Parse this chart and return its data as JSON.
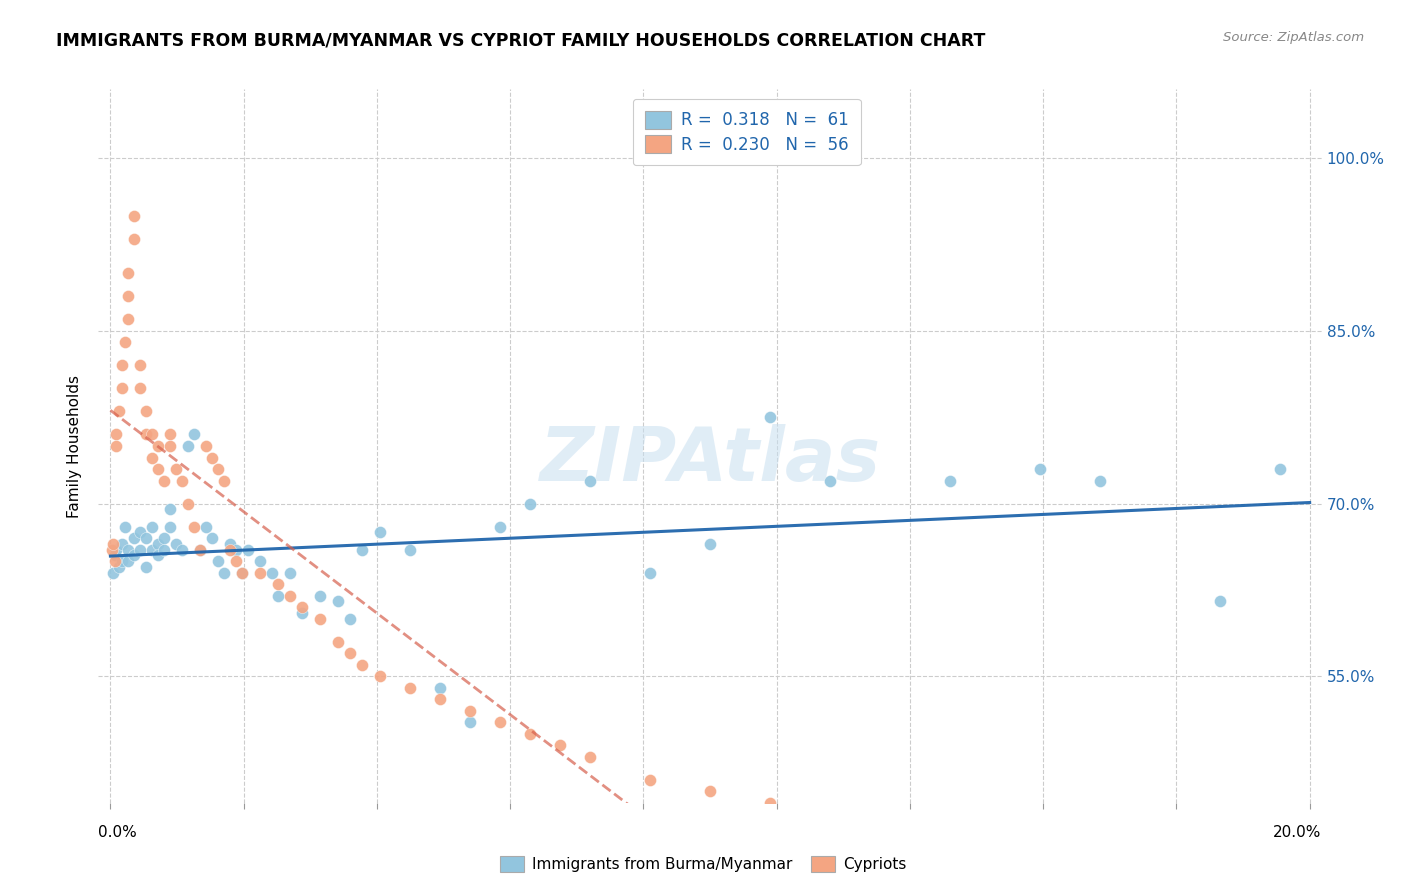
{
  "title": "IMMIGRANTS FROM BURMA/MYANMAR VS CYPRIOT FAMILY HOUSEHOLDS CORRELATION CHART",
  "source": "Source: ZipAtlas.com",
  "ylabel": "Family Households",
  "blue_color": "#92c5de",
  "pink_color": "#f4a582",
  "blue_line_color": "#2166ac",
  "pink_line_color": "#d6604d",
  "watermark": "ZIPAtlas",
  "legend_r_blue": "0.318",
  "legend_n_blue": "61",
  "legend_r_pink": "0.230",
  "legend_n_pink": "56",
  "ytick_values": [
    0.55,
    0.7,
    0.85,
    1.0
  ],
  "ylim": [
    0.44,
    1.06
  ],
  "xlim": [
    -0.002,
    0.202
  ],
  "blue_x": [
    0.0005,
    0.0008,
    0.001,
    0.0015,
    0.002,
    0.002,
    0.0025,
    0.003,
    0.003,
    0.004,
    0.004,
    0.005,
    0.005,
    0.006,
    0.006,
    0.007,
    0.007,
    0.008,
    0.008,
    0.009,
    0.009,
    0.01,
    0.01,
    0.011,
    0.012,
    0.013,
    0.014,
    0.015,
    0.016,
    0.017,
    0.018,
    0.019,
    0.02,
    0.021,
    0.022,
    0.023,
    0.025,
    0.027,
    0.028,
    0.03,
    0.032,
    0.035,
    0.038,
    0.04,
    0.042,
    0.045,
    0.05,
    0.055,
    0.06,
    0.065,
    0.07,
    0.08,
    0.09,
    0.1,
    0.11,
    0.12,
    0.14,
    0.155,
    0.165,
    0.185,
    0.195
  ],
  "blue_y": [
    0.64,
    0.655,
    0.66,
    0.645,
    0.65,
    0.665,
    0.68,
    0.65,
    0.66,
    0.67,
    0.655,
    0.66,
    0.675,
    0.645,
    0.67,
    0.68,
    0.66,
    0.665,
    0.655,
    0.67,
    0.66,
    0.68,
    0.695,
    0.665,
    0.66,
    0.75,
    0.76,
    0.66,
    0.68,
    0.67,
    0.65,
    0.64,
    0.665,
    0.66,
    0.64,
    0.66,
    0.65,
    0.64,
    0.62,
    0.64,
    0.605,
    0.62,
    0.615,
    0.6,
    0.66,
    0.675,
    0.66,
    0.54,
    0.51,
    0.68,
    0.7,
    0.72,
    0.64,
    0.665,
    0.775,
    0.72,
    0.72,
    0.73,
    0.72,
    0.615,
    0.73
  ],
  "pink_x": [
    0.0003,
    0.0005,
    0.0008,
    0.001,
    0.001,
    0.0015,
    0.002,
    0.002,
    0.0025,
    0.003,
    0.003,
    0.003,
    0.004,
    0.004,
    0.005,
    0.005,
    0.006,
    0.006,
    0.007,
    0.007,
    0.008,
    0.008,
    0.009,
    0.01,
    0.01,
    0.011,
    0.012,
    0.013,
    0.014,
    0.015,
    0.016,
    0.017,
    0.018,
    0.019,
    0.02,
    0.021,
    0.022,
    0.025,
    0.028,
    0.03,
    0.032,
    0.035,
    0.038,
    0.04,
    0.042,
    0.045,
    0.05,
    0.055,
    0.06,
    0.065,
    0.07,
    0.075,
    0.08,
    0.09,
    0.1,
    0.11
  ],
  "pink_y": [
    0.66,
    0.665,
    0.65,
    0.75,
    0.76,
    0.78,
    0.8,
    0.82,
    0.84,
    0.88,
    0.9,
    0.86,
    0.93,
    0.95,
    0.82,
    0.8,
    0.78,
    0.76,
    0.76,
    0.74,
    0.75,
    0.73,
    0.72,
    0.76,
    0.75,
    0.73,
    0.72,
    0.7,
    0.68,
    0.66,
    0.75,
    0.74,
    0.73,
    0.72,
    0.66,
    0.65,
    0.64,
    0.64,
    0.63,
    0.62,
    0.61,
    0.6,
    0.58,
    0.57,
    0.56,
    0.55,
    0.54,
    0.53,
    0.52,
    0.51,
    0.5,
    0.49,
    0.48,
    0.46,
    0.45,
    0.44
  ]
}
